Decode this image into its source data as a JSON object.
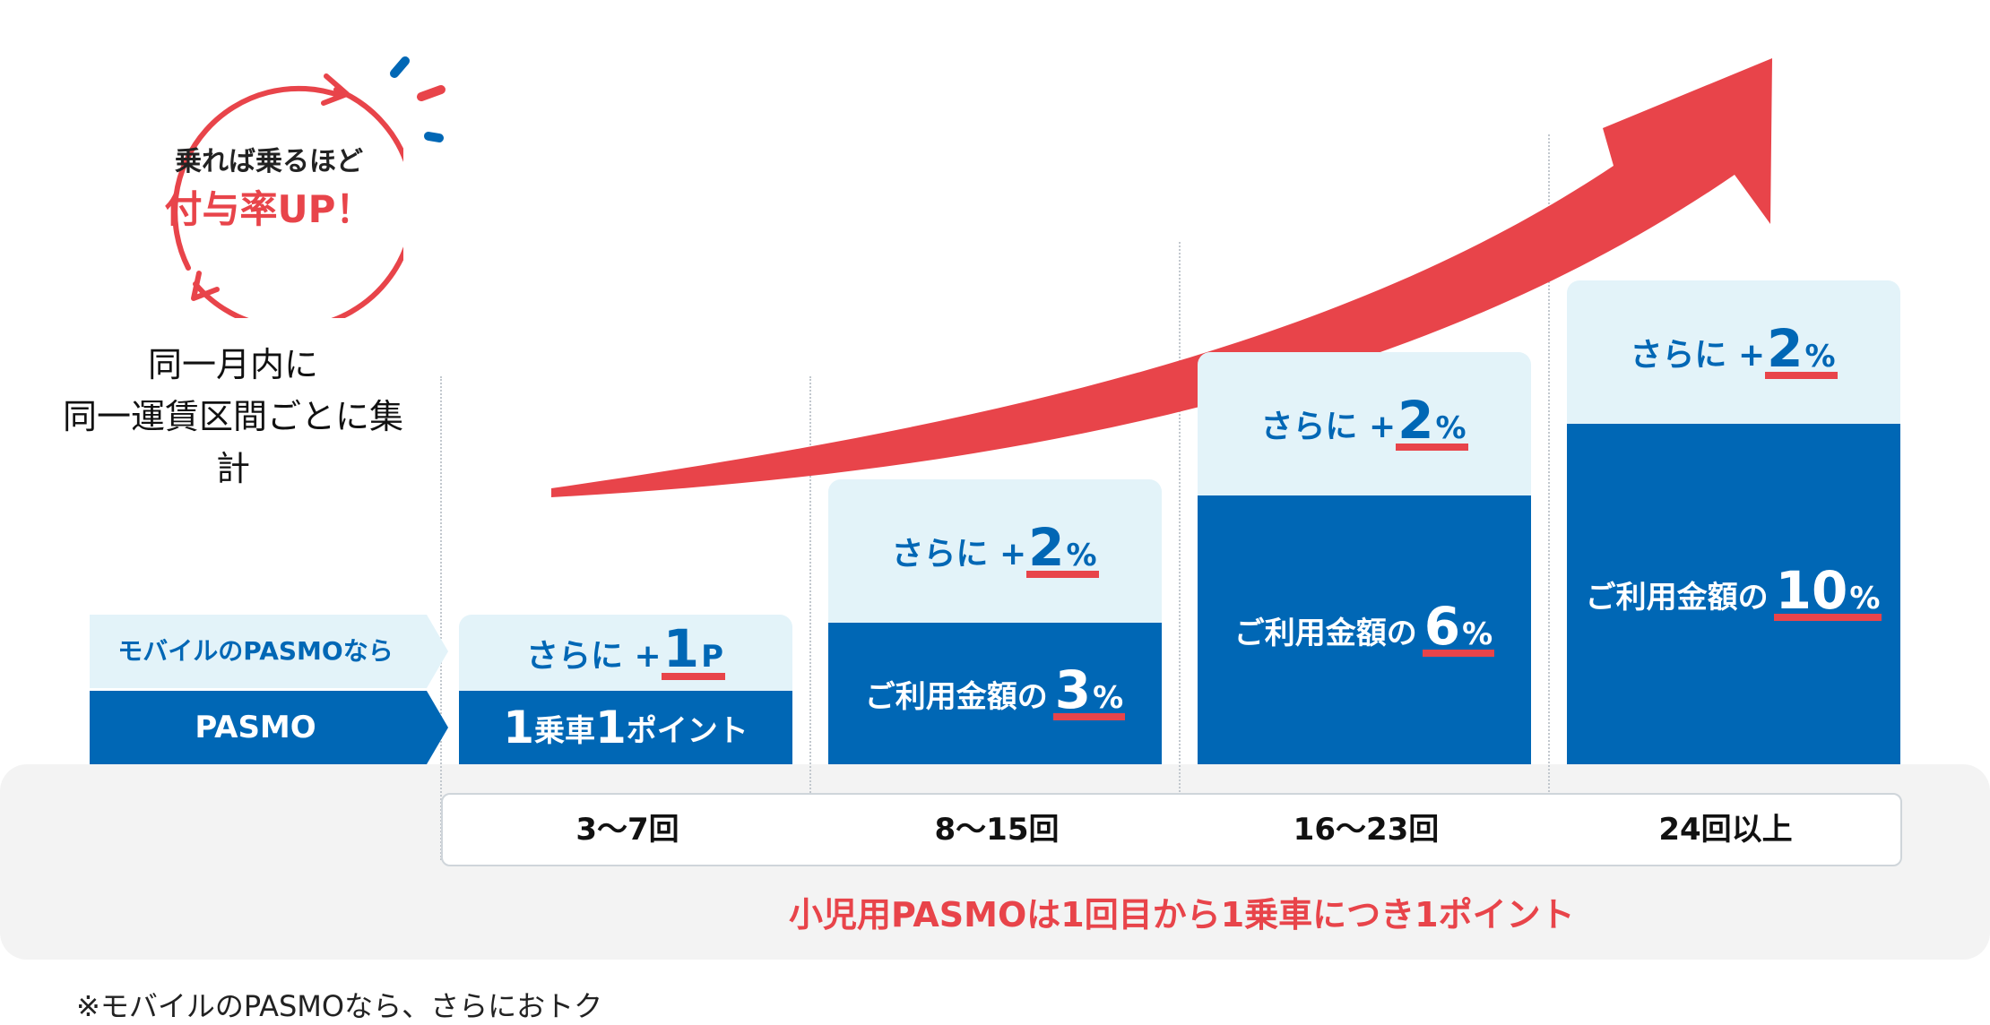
{
  "badge": {
    "line1": "乗れば乗るほど",
    "line2": "付与率UP！"
  },
  "aggregation_note": {
    "line1": "同一月内に",
    "line2": "同一運賃区間ごとに集計"
  },
  "base_labels": {
    "mobile": "モバイルのPASMOなら",
    "pasmo": "PASMO"
  },
  "tiers": [
    {
      "bonus_prefix": "さらに +",
      "bonus_value": "1",
      "bonus_unit": "P",
      "rate_num1": "1",
      "rate_text1": "乗車",
      "rate_num2": "1",
      "rate_text2": "ポイント",
      "count": "3〜7回"
    },
    {
      "bonus_prefix": "さらに +",
      "bonus_value": "2",
      "bonus_unit": "%",
      "rate_prefix": "ご利用金額の",
      "rate_value": "3",
      "rate_unit": "%",
      "count": "8〜15回"
    },
    {
      "bonus_prefix": "さらに +",
      "bonus_value": "2",
      "bonus_unit": "%",
      "rate_prefix": "ご利用金額の",
      "rate_value": "6",
      "rate_unit": "%",
      "count": "16〜23回"
    },
    {
      "bonus_prefix": "さらに +",
      "bonus_value": "2",
      "bonus_unit": "%",
      "rate_prefix": "ご利用金額の",
      "rate_value": "10",
      "rate_unit": "%",
      "count": "24回以上"
    }
  ],
  "child_note": "小児用PASMOは1回目から1乗車につき1ポイント",
  "footnote": "※モバイルのPASMOなら、さらにおトク",
  "colors": {
    "primary_blue": "#0067b5",
    "light_blue": "#e3f3f9",
    "accent_red": "#e8444a",
    "band_gray": "#f3f3f3"
  },
  "icons": [
    "circular-arrow-icon",
    "sparkle-icon",
    "growth-arrow-icon"
  ]
}
